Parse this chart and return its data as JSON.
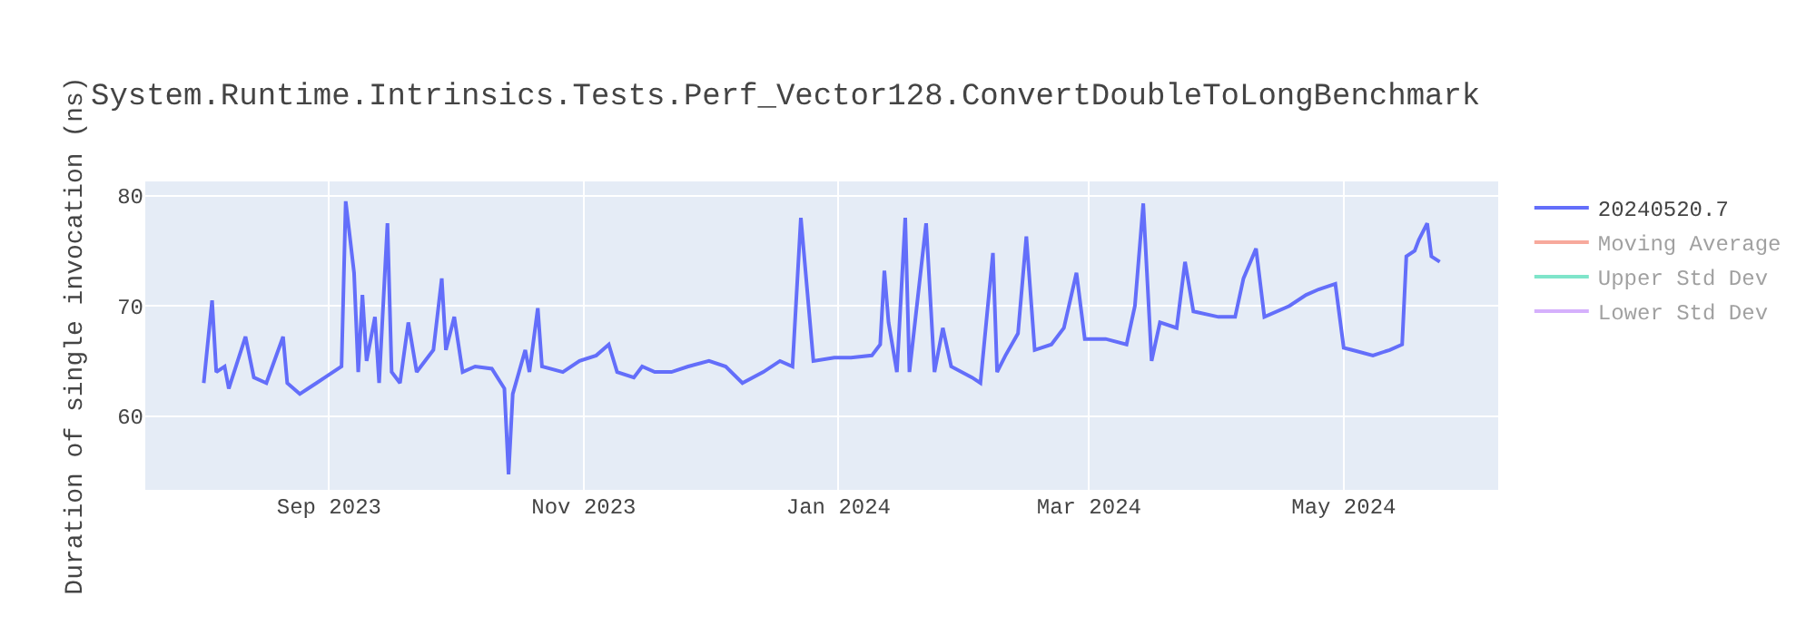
{
  "chart_data": {
    "type": "line",
    "title": "System.Runtime.Intrinsics.Tests.Perf_Vector128.ConvertDoubleToLongBenchmark",
    "ylabel": "Duration of single invocation (ns)",
    "x": [
      "2023-08-02",
      "2023-08-04",
      "2023-08-05",
      "2023-08-07",
      "2023-08-08",
      "2023-08-12",
      "2023-08-14",
      "2023-08-17",
      "2023-08-21",
      "2023-08-22",
      "2023-08-25",
      "2023-08-27",
      "2023-08-29",
      "2023-08-31",
      "2023-09-04",
      "2023-09-05",
      "2023-09-07",
      "2023-09-08",
      "2023-09-09",
      "2023-09-10",
      "2023-09-12",
      "2023-09-13",
      "2023-09-15",
      "2023-09-16",
      "2023-09-18",
      "2023-09-20",
      "2023-09-22",
      "2023-09-26",
      "2023-09-28",
      "2023-09-29",
      "2023-10-01",
      "2023-10-03",
      "2023-10-06",
      "2023-10-10",
      "2023-10-13",
      "2023-10-14",
      "2023-10-15",
      "2023-10-18",
      "2023-10-19",
      "2023-10-21",
      "2023-10-22",
      "2023-10-27",
      "2023-10-31",
      "2023-11-04",
      "2023-11-07",
      "2023-11-09",
      "2023-11-13",
      "2023-11-15",
      "2023-11-18",
      "2023-11-22",
      "2023-11-26",
      "2023-12-01",
      "2023-12-05",
      "2023-12-09",
      "2023-12-14",
      "2023-12-18",
      "2023-12-21",
      "2023-12-23",
      "2023-12-26",
      "2023-12-31",
      "2024-01-04",
      "2024-01-09",
      "2024-01-11",
      "2024-01-12",
      "2024-01-13",
      "2024-01-15",
      "2024-01-17",
      "2024-01-18",
      "2024-01-22",
      "2024-01-24",
      "2024-01-26",
      "2024-01-28",
      "2024-02-02",
      "2024-02-04",
      "2024-02-07",
      "2024-02-08",
      "2024-02-10",
      "2024-02-13",
      "2024-02-15",
      "2024-02-17",
      "2024-02-21",
      "2024-02-24",
      "2024-02-27",
      "2024-02-29",
      "2024-03-05",
      "2024-03-10",
      "2024-03-12",
      "2024-03-14",
      "2024-03-16",
      "2024-03-18",
      "2024-03-22",
      "2024-03-24",
      "2024-03-26",
      "2024-04-01",
      "2024-04-05",
      "2024-04-07",
      "2024-04-10",
      "2024-04-12",
      "2024-04-18",
      "2024-04-22",
      "2024-04-25",
      "2024-04-29",
      "2024-05-01",
      "2024-05-03",
      "2024-05-08",
      "2024-05-12",
      "2024-05-15",
      "2024-05-16",
      "2024-05-18",
      "2024-05-19",
      "2024-05-21",
      "2024-05-22",
      "2024-05-24"
    ],
    "series": [
      {
        "name": "20240520.7",
        "color": "#636efa",
        "values": [
          63.0,
          70.5,
          64,
          64.5,
          62.5,
          67.2,
          63.5,
          63,
          67.2,
          63,
          62,
          62.5,
          63,
          63.5,
          64.5,
          79.5,
          73,
          64,
          71,
          65,
          69,
          63,
          77.5,
          64,
          63,
          68.5,
          64,
          66,
          72.5,
          66,
          69,
          64,
          64.5,
          64.3,
          62.5,
          54.7,
          62,
          66,
          64,
          69.8,
          64.5,
          64,
          65,
          65.5,
          66.5,
          64,
          63.5,
          64.5,
          64,
          64,
          64.5,
          65,
          64.5,
          63,
          64,
          65,
          64.5,
          78,
          65,
          65.3,
          65.3,
          65.5,
          66.5,
          73.2,
          68.5,
          64,
          78,
          64,
          77.5,
          64,
          68,
          64.5,
          63.5,
          63,
          74.8,
          64,
          65.5,
          67.5,
          76.3,
          66,
          66.5,
          68,
          73,
          67,
          67,
          66.5,
          70,
          79.3,
          65,
          68.5,
          68,
          74,
          69.5,
          69,
          69,
          72.5,
          75.2,
          69,
          70,
          71,
          71.5,
          72,
          66.2,
          66,
          65.5,
          66,
          66.5,
          74.5,
          75,
          76,
          77.5,
          74.5,
          74
        ]
      },
      {
        "name": "Moving Average",
        "color": "#ef553b",
        "values": [
          null,
          null,
          null,
          null,
          null,
          null,
          null,
          null,
          null,
          null,
          null,
          null,
          null,
          null,
          null,
          null,
          null,
          null,
          null,
          null,
          null,
          null,
          null,
          null,
          null,
          null,
          null,
          null,
          null,
          null,
          null,
          null,
          null,
          null,
          null,
          null,
          null,
          null,
          null,
          null,
          null,
          null,
          null,
          null,
          null,
          null,
          null,
          null,
          null,
          null,
          null,
          null,
          null,
          null,
          null,
          null,
          null,
          null,
          null,
          null,
          null,
          null,
          null,
          null,
          null,
          null,
          null,
          null,
          null,
          null,
          null,
          null,
          null,
          null,
          null,
          null,
          null,
          null,
          null,
          null,
          null,
          null,
          null,
          null,
          null,
          null,
          null,
          null,
          null,
          null,
          null,
          null,
          null,
          null,
          null,
          null,
          null,
          null,
          null,
          null,
          null,
          null,
          null,
          null,
          null,
          null,
          null,
          null,
          null,
          null,
          null,
          null,
          null
        ]
      },
      {
        "name": "Upper Std Dev",
        "color": "#00cc96",
        "values": [
          null,
          null,
          null,
          null,
          null,
          null,
          null,
          null,
          null,
          null,
          null,
          null,
          null,
          null,
          null,
          null,
          null,
          null,
          null,
          null,
          null,
          null,
          null,
          null,
          null,
          null,
          null,
          null,
          null,
          null,
          null,
          null,
          null,
          null,
          null,
          null,
          null,
          null,
          null,
          null,
          null,
          null,
          null,
          null,
          null,
          null,
          null,
          null,
          null,
          null,
          null,
          null,
          null,
          null,
          null,
          null,
          null,
          null,
          null,
          null,
          null,
          null,
          null,
          null,
          null,
          null,
          null,
          null,
          null,
          null,
          null,
          null,
          null,
          null,
          null,
          null,
          null,
          null,
          null,
          null,
          null,
          null,
          null,
          null,
          null,
          null,
          null,
          null,
          null,
          null,
          null,
          null,
          null,
          null,
          null,
          null,
          null,
          null,
          null,
          null,
          null,
          null,
          null,
          null,
          null,
          null,
          null,
          null,
          null,
          null,
          null,
          null,
          null
        ]
      },
      {
        "name": "Lower Std Dev",
        "color": "#ab63fa",
        "values": [
          null,
          null,
          null,
          null,
          null,
          null,
          null,
          null,
          null,
          null,
          null,
          null,
          null,
          null,
          null,
          null,
          null,
          null,
          null,
          null,
          null,
          null,
          null,
          null,
          null,
          null,
          null,
          null,
          null,
          null,
          null,
          null,
          null,
          null,
          null,
          null,
          null,
          null,
          null,
          null,
          null,
          null,
          null,
          null,
          null,
          null,
          null,
          null,
          null,
          null,
          null,
          null,
          null,
          null,
          null,
          null,
          null,
          null,
          null,
          null,
          null,
          null,
          null,
          null,
          null,
          null,
          null,
          null,
          null,
          null,
          null,
          null,
          null,
          null,
          null,
          null,
          null,
          null,
          null,
          null,
          null,
          null,
          null,
          null,
          null,
          null,
          null,
          null,
          null,
          null,
          null,
          null,
          null,
          null,
          null,
          null,
          null,
          null,
          null,
          null,
          null,
          null,
          null,
          null,
          null,
          null,
          null,
          null,
          null,
          null,
          null,
          null,
          null
        ]
      }
    ],
    "xlim": [
      "2023-07-19",
      "2024-06-07"
    ],
    "xticks": [
      {
        "value": "2023-09-01",
        "label": "Sep 2023"
      },
      {
        "value": "2023-11-01",
        "label": "Nov 2023"
      },
      {
        "value": "2024-01-01",
        "label": "Jan 2024"
      },
      {
        "value": "2024-03-01",
        "label": "Mar 2024"
      },
      {
        "value": "2024-05-01",
        "label": "May 2024"
      }
    ],
    "ylim": [
      53.3,
      81.3
    ],
    "yticks": [
      60,
      70,
      80
    ],
    "grid": true,
    "legend": "top right",
    "line_style": "solid"
  }
}
